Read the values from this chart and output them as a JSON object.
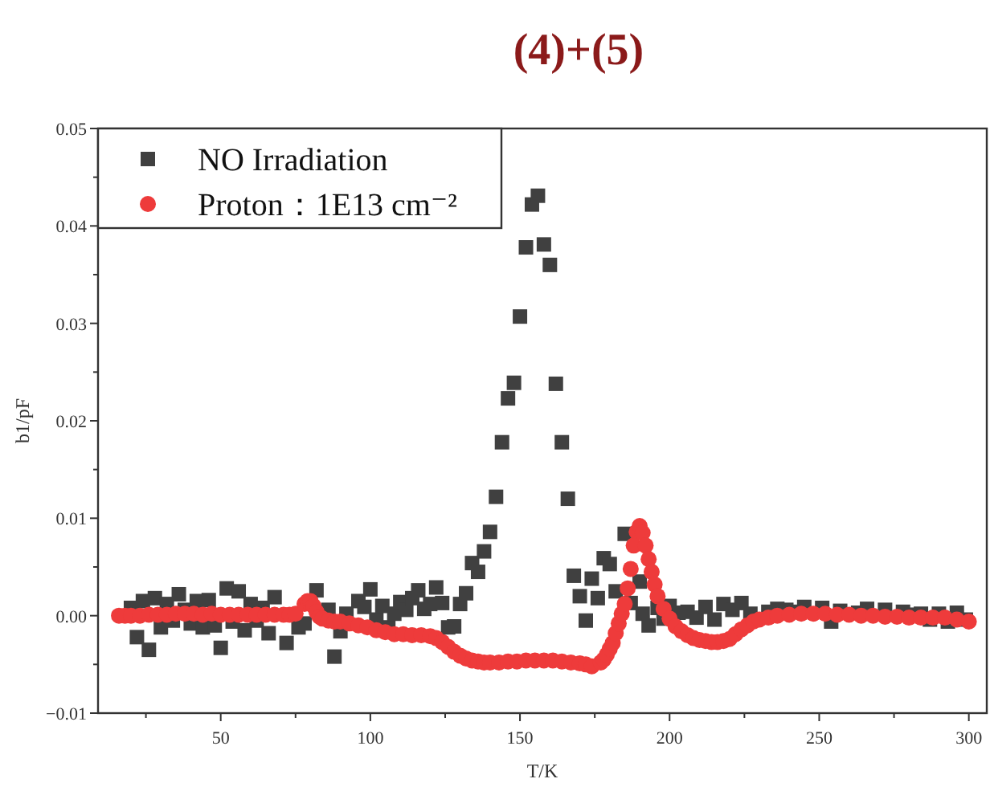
{
  "chart_data": {
    "type": "scatter",
    "title": "(4)+(5)",
    "xlabel": "T/K",
    "ylabel": "b1/pF",
    "xlim": [
      9,
      306
    ],
    "ylim": [
      -0.01,
      0.05
    ],
    "xticks": [
      {
        "value": 25,
        "label": null
      },
      50,
      {
        "value": 75,
        "label": null
      },
      100,
      {
        "value": 125,
        "label": null
      },
      150,
      {
        "value": 175,
        "label": null
      },
      200,
      {
        "value": 225,
        "label": null
      },
      250,
      {
        "value": 275,
        "label": null
      },
      300
    ],
    "yticks": [
      {
        "value": -0.01,
        "label": "−0.01"
      },
      {
        "value": -0.005,
        "label": null
      },
      {
        "value": 0,
        "label": "0.00"
      },
      {
        "value": 0.005,
        "label": null
      },
      {
        "value": 0.01,
        "label": "0.01"
      },
      {
        "value": 0.015,
        "label": null
      },
      {
        "value": 0.02,
        "label": "0.02"
      },
      {
        "value": 0.025,
        "label": null
      },
      {
        "value": 0.03,
        "label": "0.03"
      },
      {
        "value": 0.035,
        "label": null
      },
      {
        "value": 0.04,
        "label": "0.04"
      },
      {
        "value": 0.045,
        "label": null
      },
      {
        "value": 0.05,
        "label": "0.05"
      }
    ],
    "grid": false,
    "legend": "top left",
    "series": [
      {
        "name": "NO Irradiation",
        "color": "#404040",
        "marker": "square",
        "x": [
          20,
          22,
          24,
          26,
          28,
          30,
          32,
          34,
          36,
          38,
          40,
          42,
          44,
          46,
          48,
          50,
          52,
          54,
          56,
          58,
          60,
          62,
          64,
          66,
          68,
          72,
          76,
          78,
          82,
          86,
          88,
          90,
          92,
          96,
          98,
          100,
          102,
          104,
          106,
          108,
          110,
          112,
          114,
          116,
          118,
          120,
          122,
          124,
          126,
          128,
          130,
          132,
          134,
          136,
          138,
          140,
          142,
          144,
          146,
          148,
          150,
          152,
          154,
          156,
          158,
          160,
          162,
          164,
          166,
          168,
          170,
          172,
          174,
          176,
          178,
          180,
          182,
          185,
          187,
          190,
          191,
          193,
          196,
          198,
          200,
          203,
          206,
          209,
          212,
          215,
          218,
          221,
          224,
          227,
          233,
          236,
          239,
          242,
          245,
          251,
          254,
          257,
          263,
          266,
          272,
          278,
          281,
          284,
          287,
          290,
          293,
          296,
          299
        ],
        "values": [
          0.0008,
          -0.0022,
          0.0015,
          -0.0035,
          0.0018,
          -0.0012,
          0.0012,
          -0.0005,
          0.0022,
          0.0006,
          -0.0008,
          0.0015,
          -0.0012,
          0.0016,
          -0.001,
          -0.0033,
          0.0028,
          -0.0006,
          0.0025,
          -0.0015,
          0.0012,
          -0.0005,
          0.0008,
          -0.0018,
          0.0019,
          -0.0028,
          -0.0012,
          -0.0008,
          0.0026,
          0.0006,
          -0.0042,
          -0.0016,
          0.0002,
          0.0015,
          0.0009,
          0.0027,
          -0.0004,
          0.001,
          -0.0012,
          0.0002,
          0.0014,
          0.0006,
          0.0018,
          0.0026,
          0.0007,
          0.0012,
          0.0029,
          0.0013,
          -0.0012,
          -0.0011,
          0.0012,
          0.0023,
          0.0054,
          0.0045,
          0.0066,
          0.0086,
          0.0122,
          0.0178,
          0.0223,
          0.0239,
          0.0307,
          0.0378,
          0.0422,
          0.0431,
          0.0381,
          0.036,
          0.0238,
          0.0178,
          0.012,
          0.0041,
          0.002,
          -0.0005,
          0.0038,
          0.0018,
          0.0059,
          0.0053,
          0.0025,
          0.0084,
          0.0013,
          0.0035,
          0.0002,
          -0.001,
          0.0008,
          -0.0003,
          0.001,
          0.0003,
          0.0004,
          -0.0002,
          0.0009,
          -0.0004,
          0.0012,
          0.0006,
          0.0013,
          0.0002,
          0.0004,
          0.0007,
          0.0006,
          0.0004,
          0.0009,
          0.0008,
          -0.0006,
          0.0005,
          0.0003,
          0.0007,
          0.0006,
          0.0004,
          0.0001,
          0.0002,
          -0.0004,
          0.0002,
          -0.0006,
          0.0003,
          -0.0004
        ]
      },
      {
        "name": "Proton：1E13 cm⁻²",
        "color": "#ee3b3b",
        "marker": "circle",
        "x": [
          16,
          18,
          20,
          23,
          26,
          29,
          32,
          35,
          38,
          41,
          44,
          47,
          50,
          53,
          56,
          59,
          62,
          65,
          68,
          71,
          73,
          75,
          78,
          79,
          80,
          81,
          82,
          83,
          84,
          86,
          88,
          90,
          93,
          96,
          99,
          102,
          105,
          108,
          111,
          114,
          117,
          120,
          122,
          124,
          126,
          128,
          130,
          132,
          134,
          136,
          138,
          140,
          143,
          146,
          149,
          152,
          155,
          158,
          161,
          164,
          167,
          170,
          172,
          174,
          177,
          178,
          179,
          180,
          181,
          182,
          183,
          184,
          185,
          186,
          187,
          188,
          189,
          190,
          191,
          192,
          193,
          194,
          195,
          196,
          198,
          200,
          202,
          204,
          206,
          208,
          210,
          212,
          214,
          216,
          218,
          220,
          222,
          224,
          226,
          228,
          230,
          233,
          236,
          240,
          244,
          248,
          252,
          256,
          260,
          264,
          268,
          272,
          276,
          280,
          284,
          288,
          292,
          296,
          300
        ],
        "values": [
          0,
          0,
          0,
          0,
          0.0001,
          0.0001,
          0.0001,
          0.0002,
          0.0002,
          0.0002,
          0.0001,
          0.0002,
          0.0001,
          0.0001,
          0.0001,
          0.0001,
          0.0001,
          0.0001,
          0.0001,
          0.0001,
          0.0001,
          0.0002,
          0.0012,
          0.0015,
          0.0015,
          0.001,
          0.0004,
          -0.0001,
          -0.0003,
          -0.0005,
          -0.0006,
          -0.0006,
          -0.0008,
          -0.001,
          -0.0012,
          -0.0015,
          -0.0017,
          -0.0019,
          -0.0019,
          -0.002,
          -0.002,
          -0.0021,
          -0.0023,
          -0.0027,
          -0.0032,
          -0.0037,
          -0.0041,
          -0.0044,
          -0.0046,
          -0.0047,
          -0.0048,
          -0.0048,
          -0.0048,
          -0.0047,
          -0.0047,
          -0.0046,
          -0.0046,
          -0.0046,
          -0.0046,
          -0.0047,
          -0.0048,
          -0.0049,
          -0.005,
          -0.0052,
          -0.0048,
          -0.0045,
          -0.004,
          -0.0034,
          -0.0028,
          -0.0018,
          -0.0008,
          0.0002,
          0.0012,
          0.0028,
          0.0048,
          0.0072,
          0.0086,
          0.0092,
          0.0085,
          0.0072,
          0.0058,
          0.0045,
          0.0032,
          0.002,
          0.0007,
          -0.0003,
          -0.0011,
          -0.0016,
          -0.002,
          -0.0023,
          -0.0025,
          -0.0026,
          -0.0027,
          -0.0027,
          -0.0026,
          -0.0024,
          -0.0019,
          -0.0014,
          -0.001,
          -0.0006,
          -0.0004,
          -0.0002,
          0,
          0.0001,
          0.0002,
          0.0002,
          0.0002,
          0.0001,
          0.0001,
          0,
          0,
          -0.0001,
          -0.0001,
          -0.0002,
          -0.0002,
          -0.0002,
          -0.0002,
          -0.0004,
          -0.0006
        ]
      }
    ]
  }
}
